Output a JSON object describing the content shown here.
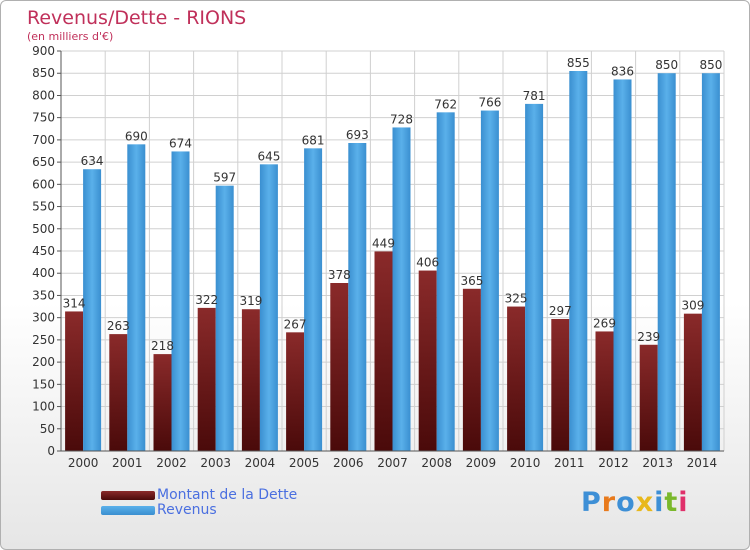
{
  "title": "Revenus/Dette - RIONS",
  "subtitle": "(en milliers d'€)",
  "colors": {
    "debt": "#7a1b1b",
    "revenue": "#4aa3e0",
    "title": "#c0305a",
    "legend_text": "#4a6fe0"
  },
  "legend": {
    "debt_label": "Montant de la Dette",
    "revenue_label": "Revenus"
  },
  "logo": {
    "text": "Proxiti"
  },
  "chart_data": {
    "type": "bar",
    "title": "Revenus/Dette - RIONS",
    "subtitle": "(en milliers d'€)",
    "categories": [
      "2000",
      "2001",
      "2002",
      "2003",
      "2004",
      "2005",
      "2006",
      "2007",
      "2008",
      "2009",
      "2010",
      "2011",
      "2012",
      "2013",
      "2014"
    ],
    "series": [
      {
        "name": "Montant de la Dette",
        "values": [
          314,
          263,
          218,
          322,
          319,
          267,
          378,
          449,
          406,
          365,
          325,
          297,
          269,
          239,
          309
        ]
      },
      {
        "name": "Revenus",
        "values": [
          634,
          690,
          674,
          597,
          645,
          681,
          693,
          728,
          762,
          766,
          781,
          855,
          836,
          850,
          850
        ]
      }
    ],
    "ylim": [
      0,
      900
    ],
    "yticks": [
      0,
      50,
      100,
      150,
      200,
      250,
      300,
      350,
      400,
      450,
      500,
      550,
      600,
      650,
      700,
      750,
      800,
      850,
      900
    ],
    "grid": true,
    "legend_position": "bottom-left"
  }
}
